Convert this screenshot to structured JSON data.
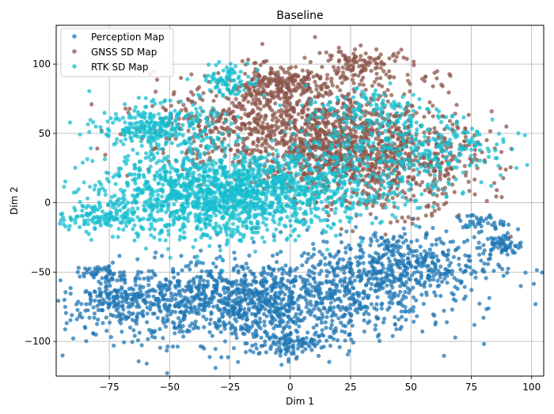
{
  "chart_data": {
    "type": "scatter",
    "title": "Baseline",
    "xlabel": "Dim 1",
    "ylabel": "Dim 2",
    "xlim": [
      -97,
      105
    ],
    "ylim": [
      -125,
      128
    ],
    "xticks": [
      -75,
      -50,
      -25,
      0,
      25,
      50,
      75,
      100
    ],
    "yticks": [
      -100,
      -50,
      0,
      50,
      100
    ],
    "xtick_labels": [
      "−75",
      "−50",
      "−25",
      "0",
      "25",
      "50",
      "75",
      "100"
    ],
    "ytick_labels": [
      "−100",
      "−50",
      "0",
      "50",
      "100"
    ],
    "grid": true,
    "legend_position": "top-left",
    "series": [
      {
        "name": "Perception Map",
        "color": "#1f77b4",
        "clusters": [
          {
            "cx": -15,
            "cy": -72,
            "sx": 35,
            "sy": 15,
            "n": 1300
          },
          {
            "cx": 45,
            "cy": -45,
            "sx": 20,
            "sy": 13,
            "n": 500
          },
          {
            "cx": -70,
            "cy": -68,
            "sx": 10,
            "sy": 9,
            "n": 180
          },
          {
            "cx": -78,
            "cy": -50,
            "sx": 4,
            "sy": 2,
            "n": 30
          },
          {
            "cx": 88,
            "cy": -30,
            "sx": 4,
            "sy": 4,
            "n": 60
          },
          {
            "cx": 78,
            "cy": -14,
            "sx": 5,
            "sy": 3,
            "n": 40
          },
          {
            "cx": -2,
            "cy": -102,
            "sx": 8,
            "sy": 5,
            "n": 100
          }
        ]
      },
      {
        "name": "GNSS SD Map",
        "color": "#8c564b",
        "clusters": [
          {
            "cx": 0,
            "cy": 55,
            "sx": 28,
            "sy": 18,
            "n": 1000
          },
          {
            "cx": 35,
            "cy": 30,
            "sx": 22,
            "sy": 18,
            "n": 800
          },
          {
            "cx": -5,
            "cy": 85,
            "sx": 10,
            "sy": 6,
            "n": 200
          },
          {
            "cx": 30,
            "cy": 100,
            "sx": 10,
            "sy": 6,
            "n": 120
          },
          {
            "cx": 60,
            "cy": 88,
            "sx": 6,
            "sy": 5,
            "n": 12
          }
        ]
      },
      {
        "name": "RTK SD Map",
        "color": "#17becf",
        "clusters": [
          {
            "cx": -30,
            "cy": 5,
            "sx": 25,
            "sy": 16,
            "n": 1300
          },
          {
            "cx": -55,
            "cy": 55,
            "sx": 12,
            "sy": 8,
            "n": 300
          },
          {
            "cx": 5,
            "cy": 15,
            "sx": 30,
            "sy": 14,
            "n": 500
          },
          {
            "cx": -25,
            "cy": 88,
            "sx": 6,
            "sy": 6,
            "n": 90
          },
          {
            "cx": 55,
            "cy": 38,
            "sx": 20,
            "sy": 10,
            "n": 220
          },
          {
            "cx": -80,
            "cy": -10,
            "sx": 8,
            "sy": 5,
            "n": 120
          },
          {
            "cx": 35,
            "cy": 65,
            "sx": 15,
            "sy": 10,
            "n": 160
          }
        ]
      }
    ]
  }
}
